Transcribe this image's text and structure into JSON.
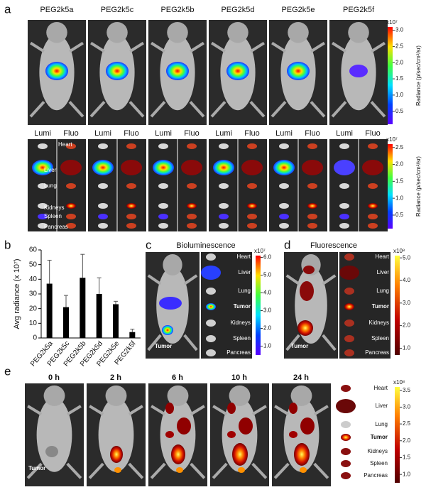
{
  "panel_a": {
    "label": "a",
    "samples": [
      "PEG2k5a",
      "PEG2k5c",
      "PEG2k5b",
      "PEG2k5d",
      "PEG2k5e",
      "PEG2k5f"
    ],
    "lumi": "Lumi",
    "fluo": "Fluo",
    "organs": [
      "Heart",
      "Liver",
      "Lung",
      "Kidneys",
      "Spleen",
      "Pancreas"
    ],
    "colorbar_top": {
      "unit": "x10⁷",
      "label": "Radiance (p/sec/cm²/sr)",
      "lim": [
        0.1,
        3.1
      ],
      "ticks": [
        {
          "value": 3,
          "label": "3.0"
        },
        2.5,
        {
          "value": 2,
          "label": "2.0"
        },
        1.5,
        {
          "value": 1,
          "label": "1.0"
        },
        0.5
      ]
    },
    "colorbar_bottom": {
      "unit": "x10⁷",
      "label": "Radiance (p/sec/cm²/sr)",
      "lim": [
        0.1,
        2.6
      ],
      "ticks": [
        2.5,
        {
          "value": 2,
          "label": "2.0"
        },
        1.5,
        {
          "value": 1,
          "label": "1.0"
        },
        0.5
      ]
    }
  },
  "chart_data": {
    "type": "bar",
    "panel_label": "b",
    "ylabel": "Avg radiance (x 10⁷)",
    "categories": [
      "PEG2k5a",
      "PEG2k5c",
      "PEG2k5b",
      "PEG2k5d",
      "PEG2k5e",
      "PEG2k5f"
    ],
    "values": [
      37,
      21,
      41,
      30,
      23,
      4
    ],
    "errors": [
      16,
      8,
      16,
      11,
      2,
      2
    ],
    "ylim": [
      0,
      60
    ],
    "yticks": [
      0,
      10,
      20,
      30,
      40,
      50,
      60
    ],
    "color": "#000000"
  },
  "panel_c": {
    "label": "c",
    "title": "Bioluminescence",
    "tumor": "Tumor",
    "organs": [
      "Heart",
      "Liver",
      "Lung",
      "Tumor",
      "Kidneys",
      "Spleen",
      "Pancreas"
    ],
    "colorbar": {
      "unit": "x10⁷",
      "lim": [
        0.5,
        6.1
      ],
      "ticks": [
        {
          "value": 6,
          "label": "6.0"
        },
        {
          "value": 5,
          "label": "5.0"
        },
        {
          "value": 4,
          "label": "4.0"
        },
        {
          "value": 3,
          "label": "3.0"
        },
        {
          "value": 2,
          "label": "2.0"
        },
        {
          "value": 1,
          "label": "1.0"
        }
      ]
    }
  },
  "panel_d": {
    "label": "d",
    "title": "Fluorescence",
    "tumor": "Tumor",
    "organs": [
      "Heart",
      "Liver",
      "Lung",
      "Tumor",
      "Kidneys",
      "Spleen",
      "Pancreas"
    ],
    "colorbar": {
      "unit": "x10⁸",
      "lim": [
        0.7,
        5.1
      ],
      "ticks": [
        {
          "value": 5,
          "label": "5.0"
        },
        {
          "value": 4,
          "label": "4.0"
        },
        {
          "value": 3,
          "label": "3.0"
        },
        {
          "value": 2,
          "label": "2.0"
        },
        {
          "value": 1,
          "label": "1.0"
        }
      ]
    }
  },
  "panel_e": {
    "label": "e",
    "times": [
      "0 h",
      "2 h",
      "6 h",
      "10 h",
      "24 h"
    ],
    "tumor": "Tumor",
    "organs": [
      "Heart",
      "Liver",
      "Lung",
      "Tumor",
      "Kidneys",
      "Spleen",
      "Pancreas"
    ],
    "colorbar": {
      "unit": "x10⁸",
      "lim": [
        0.75,
        3.6
      ],
      "ticks": [
        3.5,
        {
          "value": 3,
          "label": "3.0"
        },
        2.5,
        {
          "value": 2,
          "label": "2.0"
        },
        1.5,
        {
          "value": 1,
          "label": "1.0"
        }
      ]
    }
  }
}
